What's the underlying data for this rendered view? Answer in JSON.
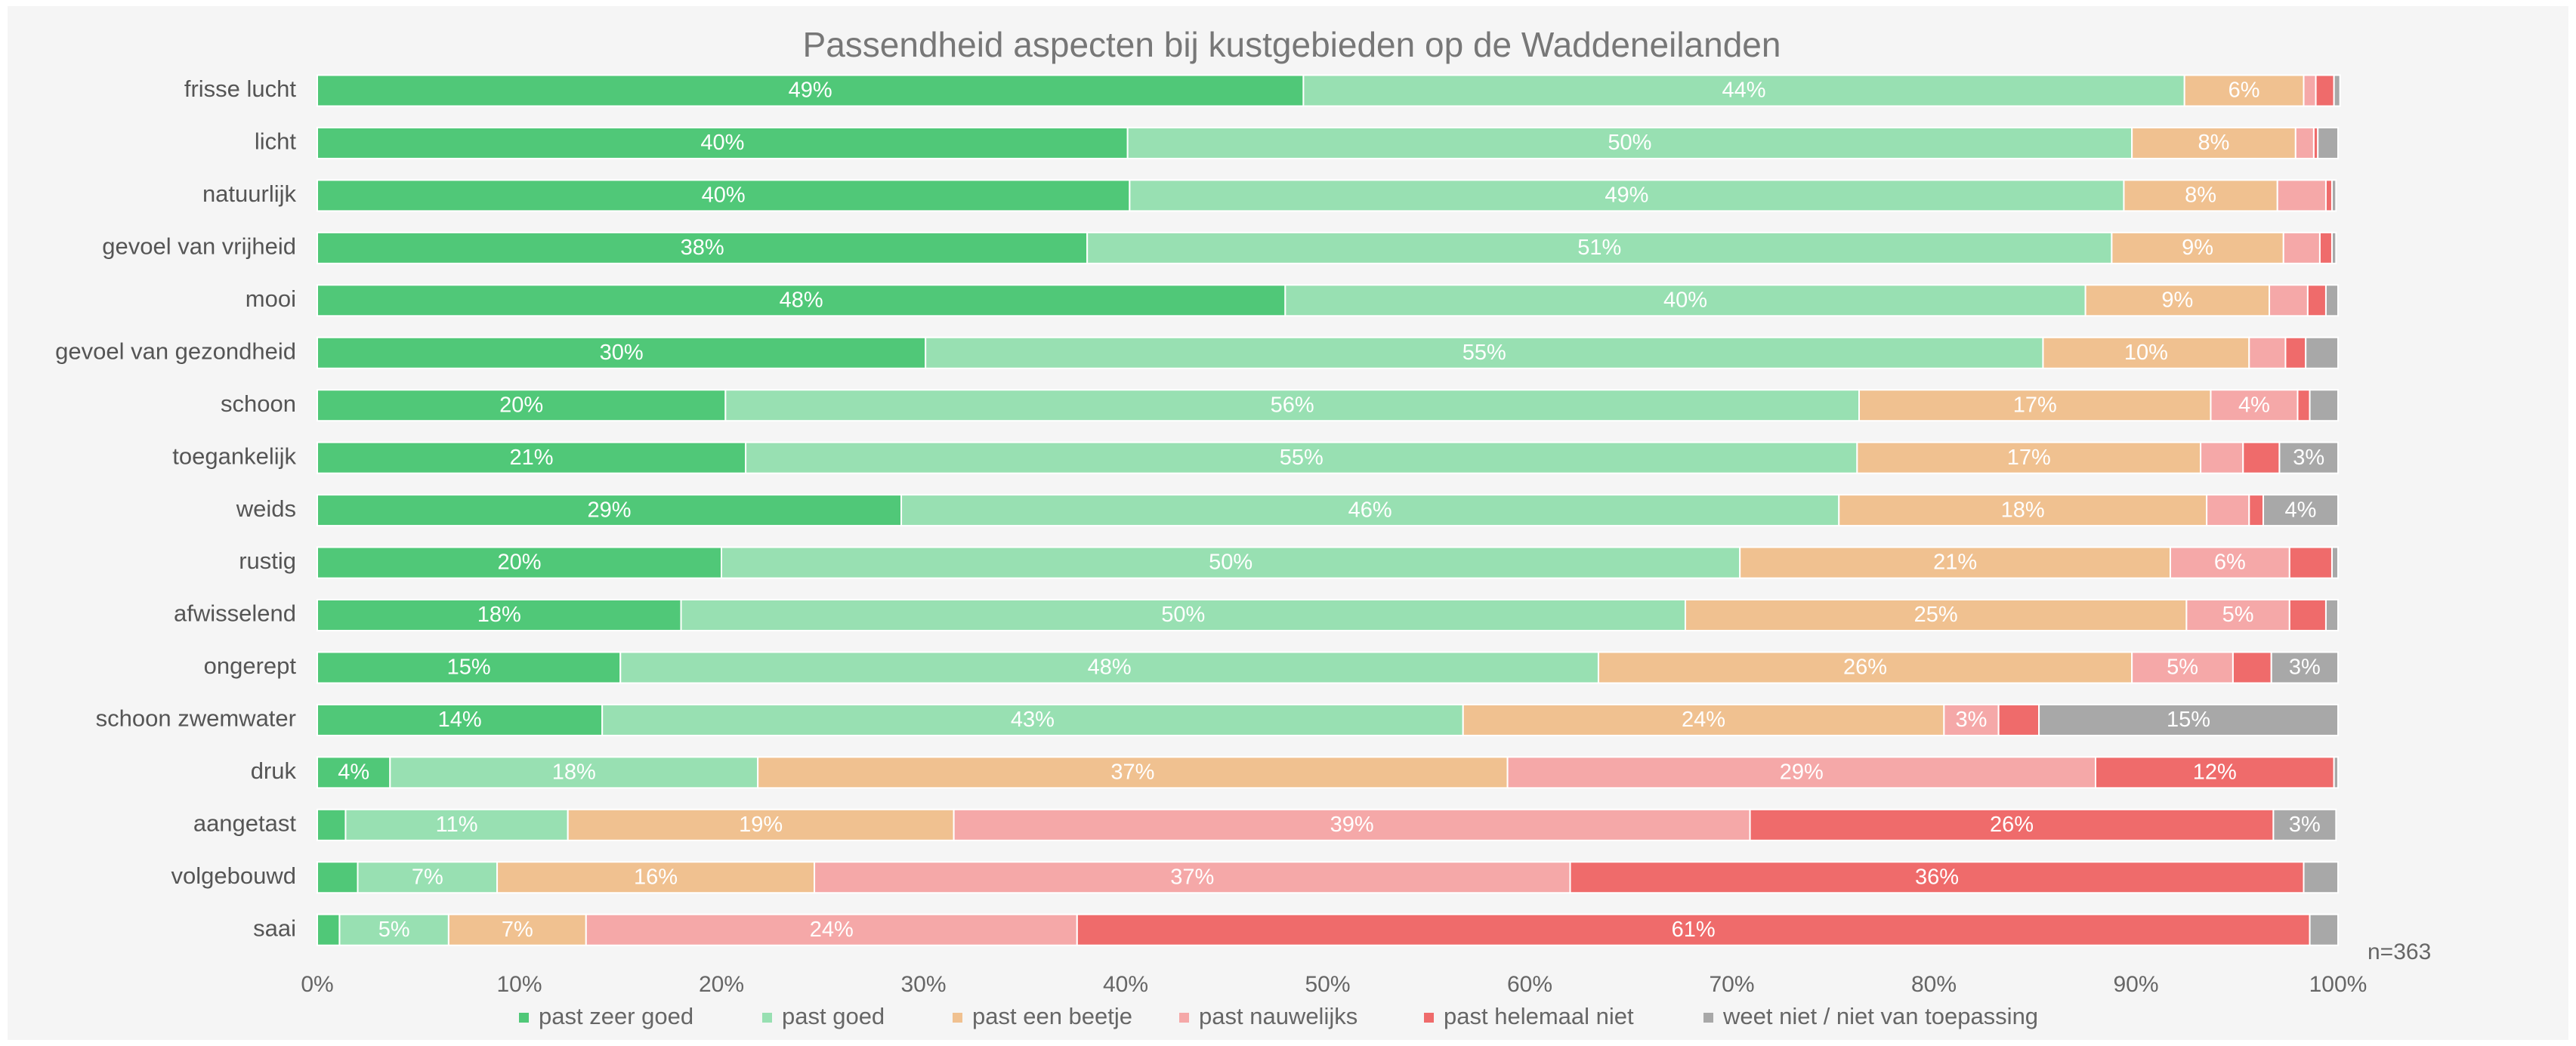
{
  "chart_data": {
    "type": "stacked_bar_horizontal",
    "title": "Passendheid aspecten bij kustgebieden op de Waddeneilanden",
    "annotation": "n=363",
    "categories": [
      "frisse lucht",
      "licht",
      "natuurlijk",
      "gevoel van vrijheid",
      "mooi",
      "gevoel van gezondheid",
      "schoon",
      "toegankelijk",
      "weids",
      "rustig",
      "afwisselend",
      "ongerept",
      "schoon zwemwater",
      "druk",
      "aangetast",
      "volgebouwd",
      "saai"
    ],
    "series": [
      {
        "name": "past zeer goed",
        "color": "#50c878",
        "values": [
          48.8,
          40.1,
          40.2,
          38.1,
          47.9,
          30.1,
          20.2,
          21.2,
          28.9,
          20.0,
          18.0,
          15.0,
          14.1,
          3.6,
          1.4,
          2.0,
          1.1
        ],
        "value_labels": [
          "49%",
          "40%",
          "40%",
          "38%",
          "48%",
          "30%",
          "20%",
          "21%",
          "29%",
          "20%",
          "18%",
          "15%",
          "14%",
          "4%",
          null,
          null,
          null
        ]
      },
      {
        "name": "past goed",
        "color": "#98e0b2",
        "values": [
          43.6,
          49.7,
          49.2,
          50.7,
          39.6,
          55.3,
          56.1,
          55.0,
          46.4,
          50.4,
          49.7,
          48.4,
          42.6,
          18.2,
          11.0,
          6.9,
          5.4
        ],
        "value_labels": [
          "44%",
          "50%",
          "49%",
          "51%",
          "40%",
          "55%",
          "56%",
          "55%",
          "46%",
          "50%",
          "50%",
          "48%",
          "43%",
          "18%",
          "11%",
          "7%",
          "5%"
        ]
      },
      {
        "name": "past een beetje",
        "color": "#f0c190",
        "values": [
          5.9,
          8.1,
          7.6,
          8.5,
          9.1,
          10.2,
          17.4,
          17.0,
          18.2,
          21.3,
          24.8,
          26.4,
          23.8,
          37.1,
          19.1,
          15.7,
          6.8
        ],
        "value_labels": [
          "6%",
          "8%",
          "8%",
          "9%",
          "9%",
          "10%",
          "17%",
          "17%",
          "18%",
          "21%",
          "25%",
          "26%",
          "24%",
          "37%",
          "19%",
          "16%",
          "7%"
        ]
      },
      {
        "name": "past nauwelijks",
        "color": "#f5a8a8",
        "values": [
          0.6,
          0.9,
          2.4,
          1.8,
          1.9,
          1.8,
          4.3,
          2.1,
          2.1,
          5.9,
          5.1,
          5.0,
          2.7,
          29.1,
          39.4,
          37.4,
          24.3
        ],
        "value_labels": [
          null,
          null,
          null,
          null,
          null,
          null,
          "4%",
          null,
          null,
          "6%",
          "5%",
          "5%",
          "3%",
          "29%",
          "39%",
          "37%",
          "24%"
        ]
      },
      {
        "name": "past helemaal niet",
        "color": "#ef6b6b",
        "values": [
          0.9,
          0.2,
          0.3,
          0.6,
          0.9,
          1.0,
          0.6,
          1.8,
          0.7,
          2.1,
          1.8,
          1.9,
          2.0,
          11.8,
          25.9,
          36.3,
          61.0
        ],
        "value_labels": [
          null,
          null,
          null,
          null,
          null,
          null,
          null,
          null,
          null,
          null,
          null,
          null,
          null,
          "12%",
          "26%",
          "36%",
          "61%"
        ]
      },
      {
        "name": "weet niet / niet van toepassing",
        "color": "#a8a8a8",
        "values": [
          0.3,
          1.0,
          0.2,
          0.2,
          0.6,
          1.6,
          1.4,
          2.9,
          3.7,
          0.3,
          0.6,
          3.3,
          14.8,
          0.2,
          3.1,
          1.7,
          1.4
        ],
        "value_labels": [
          null,
          null,
          null,
          null,
          null,
          null,
          null,
          "3%",
          "4%",
          null,
          null,
          "3%",
          "15%",
          null,
          "3%",
          null,
          null
        ]
      }
    ],
    "xlim": [
      0,
      100
    ],
    "xticks": [
      {
        "value": 0,
        "label": "0%"
      },
      {
        "value": 10,
        "label": "10%"
      },
      {
        "value": 20,
        "label": "20%"
      },
      {
        "value": 30,
        "label": "30%"
      },
      {
        "value": 40,
        "label": "40%"
      },
      {
        "value": 50,
        "label": "50%"
      },
      {
        "value": 60,
        "label": "60%"
      },
      {
        "value": 70,
        "label": "70%"
      },
      {
        "value": 80,
        "label": "80%"
      },
      {
        "value": 90,
        "label": "90%"
      },
      {
        "value": 100,
        "label": "100%"
      }
    ],
    "grid": false,
    "legend": "bottom"
  }
}
